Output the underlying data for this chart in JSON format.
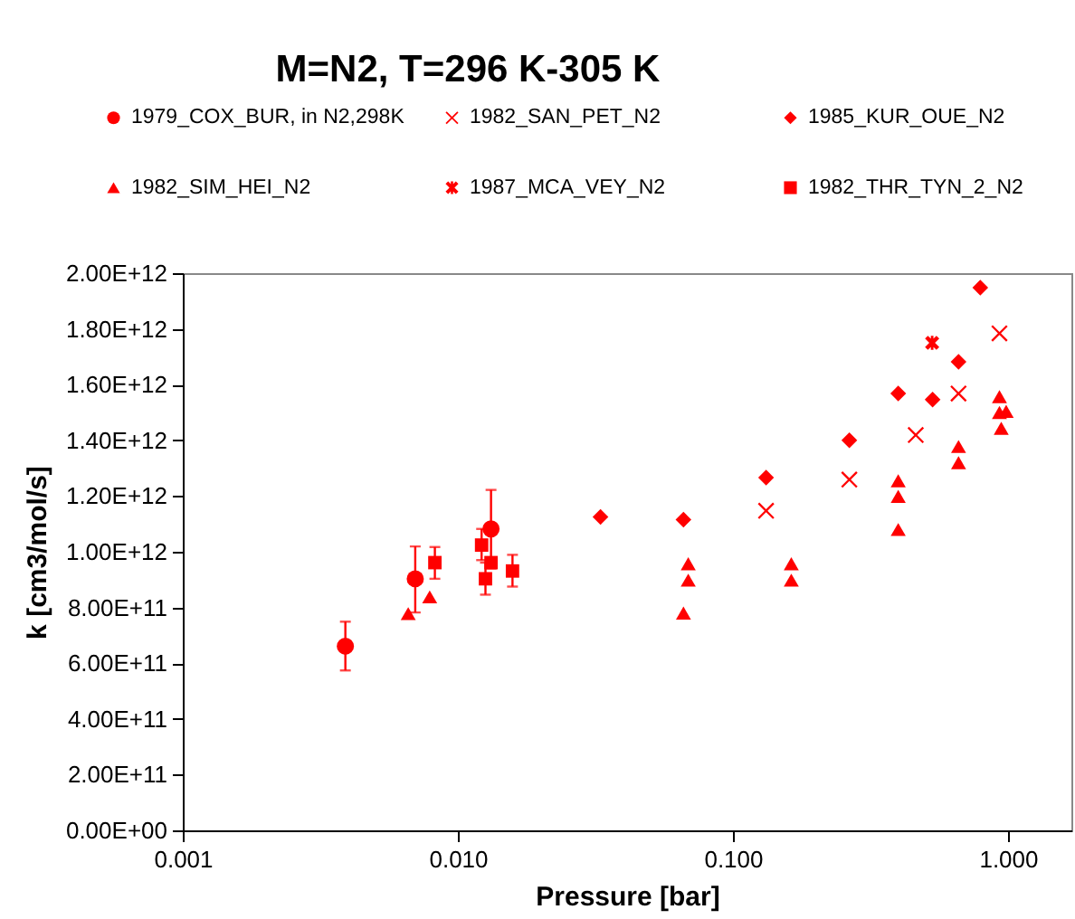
{
  "chart_data": {
    "type": "scatter",
    "title": "M=N2, T=296 K-305 K",
    "xlabel": "Pressure [bar]",
    "ylabel": "k [cm3/mol/s]",
    "log": "x",
    "legend": "top",
    "grid": false,
    "xlim": [
      0.001,
      1.7
    ],
    "xticks": [
      0.001,
      {
        "value": 0.01,
        "label": "0.010"
      },
      {
        "value": 0.1,
        "label": "0.100"
      },
      {
        "value": 1,
        "label": "1.000"
      }
    ],
    "ylim": [
      0,
      2000000000000
    ],
    "yticks": [
      {
        "value": 0,
        "label": "0.00E+00"
      },
      {
        "value": 200000000000,
        "label": "2.00E+11"
      },
      {
        "value": 400000000000,
        "label": "4.00E+11"
      },
      {
        "value": 600000000000,
        "label": "6.00E+11"
      },
      {
        "value": 800000000000,
        "label": "8.00E+11"
      },
      {
        "value": 1000000000000,
        "label": "1.00E+12"
      },
      {
        "value": 1200000000000,
        "label": "1.20E+12"
      },
      {
        "value": 1400000000000,
        "label": "1.40E+12"
      },
      {
        "value": 1600000000000,
        "label": "1.60E+12"
      },
      {
        "value": 1800000000000,
        "label": "1.80E+12"
      },
      {
        "value": 2000000000000,
        "label": "2.00E+12"
      }
    ],
    "series": [
      {
        "name": "1979_COX_BUR, in N2,298K",
        "color": "#ff0000",
        "marker": "circle",
        "x": [
          0.0039,
          0.007,
          0.0132
        ],
        "values": [
          661000000000,
          903000000000,
          1082000000000
        ],
        "errors": [
          [
            574000000000,
            749000000000
          ],
          [
            782000000000,
            1019000000000
          ],
          [
            940000000000,
            1222000000000
          ]
        ]
      },
      {
        "name": "1982_SAN_PET_N2",
        "color": "#ff0000",
        "marker": "cross",
        "x": [
          0.132,
          0.265,
          0.462,
          0.661,
          0.931
        ],
        "values": [
          1147000000000,
          1259000000000,
          1419000000000,
          1568000000000,
          1784000000000
        ]
      },
      {
        "name": "1985_KUR_OUE_N2",
        "color": "#ff0000",
        "marker": "diamond",
        "x": [
          0.033,
          0.0661,
          0.132,
          0.265,
          0.399,
          0.532,
          0.661,
          0.793
        ],
        "values": [
          1125000000000,
          1115000000000,
          1266000000000,
          1400000000000,
          1568000000000,
          1546000000000,
          1682000000000,
          1948000000000
        ]
      },
      {
        "name": "1982_SIM_HEI_N2",
        "color": "#ff0000",
        "marker": "triangle",
        "x": [
          0.0066,
          0.0079,
          0.0661,
          0.0688,
          0.0688,
          0.163,
          0.163,
          0.399,
          0.399,
          0.399,
          0.661,
          0.661,
          0.931,
          0.931,
          0.985,
          0.945
        ],
        "values": [
          778000000000,
          838000000000,
          780000000000,
          957000000000,
          898000000000,
          957000000000,
          898000000000,
          1255000000000,
          1199000000000,
          1080000000000,
          1378000000000,
          1320000000000,
          1557000000000,
          1500000000000,
          1504000000000,
          1443000000000
        ]
      },
      {
        "name": "1987_MCA_VEY_N2",
        "color": "#ff0000",
        "marker": "star",
        "x": [
          0.53
        ],
        "values": [
          1750000000000
        ]
      },
      {
        "name": "1982_THR_TYN_2_N2",
        "color": "#ff0000",
        "marker": "square",
        "x": [
          0.00825,
          0.0122,
          0.0132,
          0.0126,
          0.0158
        ],
        "values": [
          961000000000,
          1024000000000,
          961000000000,
          903000000000,
          931000000000
        ],
        "errors": [
          [
            903000000000,
            1017000000000
          ],
          [
            970000000000,
            1082000000000
          ],
          null,
          [
            846000000000,
            961000000000
          ],
          [
            875000000000,
            989000000000
          ]
        ]
      }
    ]
  }
}
